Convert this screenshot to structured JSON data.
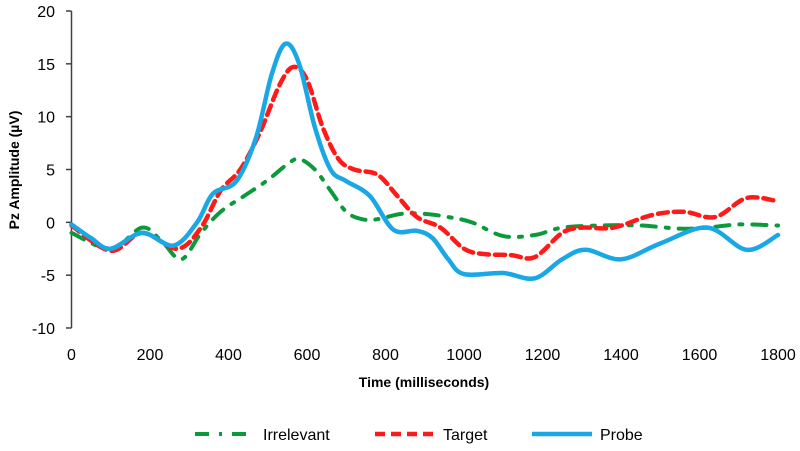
{
  "chart_data": {
    "type": "line",
    "title": "",
    "xlabel": "Time (milliseconds)",
    "ylabel": "Pz Amplitude (µV)",
    "xlim": [
      0,
      1800
    ],
    "ylim": [
      -10,
      20
    ],
    "xticks": [
      0,
      200,
      400,
      600,
      800,
      1000,
      1200,
      1400,
      1600,
      1800
    ],
    "yticks": [
      -10,
      -5,
      0,
      5,
      10,
      15,
      20
    ],
    "grid": false,
    "legend_position": "bottom",
    "series": [
      {
        "name": "Irrelevant",
        "color": "#0a9a3c",
        "style": "dash-dot",
        "x": [
          0,
          100,
          180,
          230,
          280,
          330,
          380,
          440,
          500,
          550,
          580,
          620,
          660,
          700,
          740,
          780,
          840,
          900,
          960,
          1020,
          1100,
          1180,
          1250,
          1350,
          1450,
          1550,
          1620,
          1700,
          1800
        ],
        "y": [
          -1,
          -2.5,
          -0.5,
          -1.8,
          -3.5,
          -1,
          1,
          2.5,
          4,
          5.5,
          6,
          5,
          3,
          1,
          0.3,
          0.3,
          0.8,
          0.8,
          0.5,
          0,
          -1.3,
          -1.2,
          -0.5,
          -0.3,
          -0.3,
          -0.6,
          -0.5,
          -0.2,
          -0.3
        ]
      },
      {
        "name": "Target",
        "color": "#ff1a1a",
        "style": "dashed",
        "x": [
          0,
          100,
          180,
          270,
          330,
          380,
          430,
          480,
          530,
          565,
          600,
          640,
          680,
          720,
          780,
          830,
          880,
          940,
          1000,
          1050,
          1120,
          1180,
          1250,
          1300,
          1380,
          1480,
          1560,
          1640,
          1720,
          1800
        ],
        "y": [
          -0.3,
          -2.7,
          -1,
          -2.5,
          -0.5,
          3,
          5,
          8.5,
          13,
          14.7,
          13.5,
          9,
          6,
          5,
          4.5,
          2.5,
          0.5,
          -0.5,
          -2.5,
          -3,
          -3.1,
          -3.3,
          -1,
          -0.5,
          -0.5,
          0.7,
          1,
          0.5,
          2.3,
          2
        ]
      },
      {
        "name": "Probe",
        "color": "#1aa7e6",
        "style": "solid",
        "x": [
          0,
          50,
          100,
          180,
          260,
          320,
          360,
          420,
          470,
          510,
          545,
          580,
          620,
          660,
          700,
          760,
          820,
          880,
          920,
          960,
          1000,
          1100,
          1180,
          1250,
          1310,
          1400,
          1500,
          1620,
          1720,
          1800
        ],
        "y": [
          -0.2,
          -1.5,
          -2.5,
          -1,
          -2.2,
          0,
          2.7,
          3.9,
          8,
          14,
          16.9,
          15,
          9,
          5,
          3.9,
          2.5,
          -0.7,
          -0.8,
          -1.5,
          -3.5,
          -4.9,
          -4.8,
          -5.3,
          -3.5,
          -2.6,
          -3.5,
          -2,
          -0.5,
          -2.6,
          -1.2
        ]
      }
    ]
  }
}
